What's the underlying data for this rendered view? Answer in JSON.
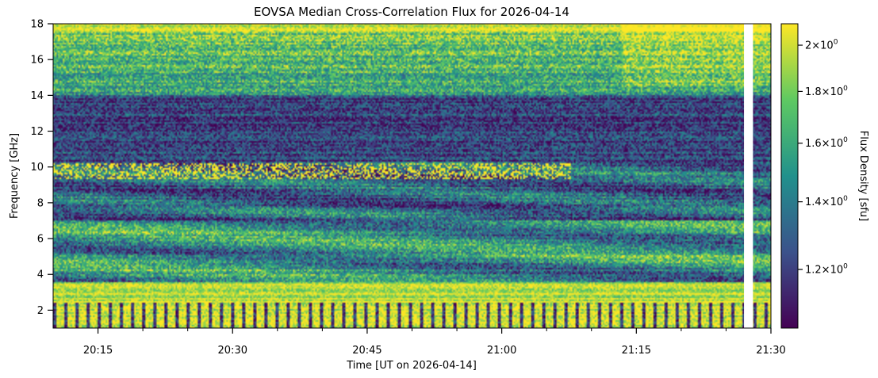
{
  "chart_data": {
    "type": "heatmap",
    "title": "EOVSA Median Cross-Correlation Flux for 2026-04-14",
    "xlabel": "Time [UT on 2026-04-14]",
    "ylabel": "Frequency [GHz]",
    "colorbar_label": "Flux Density [sfu]",
    "colormap": "viridis",
    "colormap_stops": [
      "#440154",
      "#3b528b",
      "#21918c",
      "#5ec962",
      "#fde725"
    ],
    "xlim": [
      "20:10",
      "21:30"
    ],
    "x_major_ticks": [
      "20:15",
      "20:30",
      "20:45",
      "21:00",
      "21:15",
      "21:30"
    ],
    "x_minor_ticks": [
      "20:20",
      "20:25",
      "20:35",
      "20:40",
      "20:50",
      "20:55",
      "21:05",
      "21:10",
      "21:20",
      "21:25"
    ],
    "ylim": [
      1.0,
      18.0
    ],
    "y_ticks": [
      2,
      4,
      6,
      8,
      10,
      12,
      14,
      16,
      18
    ],
    "y_tick_labels": [
      "2",
      "4",
      "6",
      "8",
      "10",
      "12",
      "14",
      "16",
      "18"
    ],
    "colorbar_scale": "log",
    "colorbar_range": [
      1.05,
      2.1
    ],
    "colorbar_ticks": [
      1.2,
      1.4,
      1.6,
      1.8,
      2.0
    ],
    "colorbar_tick_labels": [
      {
        "mantissa": "1.2",
        "base": "10",
        "exp": "0"
      },
      {
        "mantissa": "1.4",
        "base": "10",
        "exp": "0"
      },
      {
        "mantissa": "1.6",
        "base": "10",
        "exp": "0"
      },
      {
        "mantissa": "1.8",
        "base": "10",
        "exp": "0"
      },
      {
        "mantissa": "2",
        "base": "10",
        "exp": "0"
      }
    ],
    "data_gaps_utc": [
      {
        "start": "21:27",
        "end": "21:28"
      }
    ]
  }
}
